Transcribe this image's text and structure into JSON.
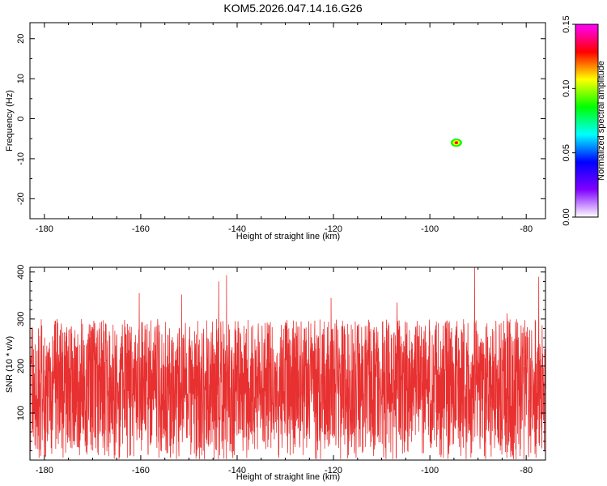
{
  "title": "KOM5.2026.047.14.16.G26",
  "chart_data": [
    {
      "type": "heatmap",
      "xlabel": "Height of straight line (km)",
      "ylabel": "Frequency (Hz)",
      "xlim": [
        -183,
        -76
      ],
      "ylim": [
        -25,
        24
      ],
      "x_ticks": [
        -180,
        -160,
        -140,
        -120,
        -100,
        -80
      ],
      "y_ticks": [
        -20,
        -10,
        0,
        10,
        20
      ],
      "colorbar": {
        "label": "Normalized spectral amplitude",
        "range": [
          0,
          0.15
        ],
        "ticks": [
          "0.00",
          "0.05",
          "0.10",
          "0.15"
        ],
        "colors": [
          "#ffffff",
          "#8000ff",
          "#0000ff",
          "#00ffff",
          "#00ff00",
          "#ffff00",
          "#ff0000",
          "#ff00ff"
        ]
      },
      "max_value": 0.15,
      "peak": {
        "x": -94.5,
        "y": -6,
        "value": 0.15
      }
    },
    {
      "type": "line",
      "xlabel": "Height of straight line (km)",
      "ylabel": "SNR (10 * v/v)",
      "xlim": [
        -183,
        -76
      ],
      "ylim": [
        0,
        410
      ],
      "x_ticks": [
        -180,
        -160,
        -140,
        -120,
        -100,
        -80
      ],
      "y_ticks": [
        100,
        200,
        300,
        400
      ],
      "series_color": "#e83030",
      "baseline": 120,
      "noise_min": 0,
      "noise_max": 410,
      "peaks": [
        {
          "x": -160.3,
          "y": 355
        },
        {
          "x": -143.8,
          "y": 380
        },
        {
          "x": -142.2,
          "y": 393
        },
        {
          "x": -151.5,
          "y": 352
        },
        {
          "x": -120.5,
          "y": 345
        },
        {
          "x": -90.7,
          "y": 410
        },
        {
          "x": -77.4,
          "y": 390
        },
        {
          "x": -106.8,
          "y": 335
        },
        {
          "x": -172.3,
          "y": 300
        },
        {
          "x": -84.0,
          "y": 312
        }
      ]
    }
  ]
}
